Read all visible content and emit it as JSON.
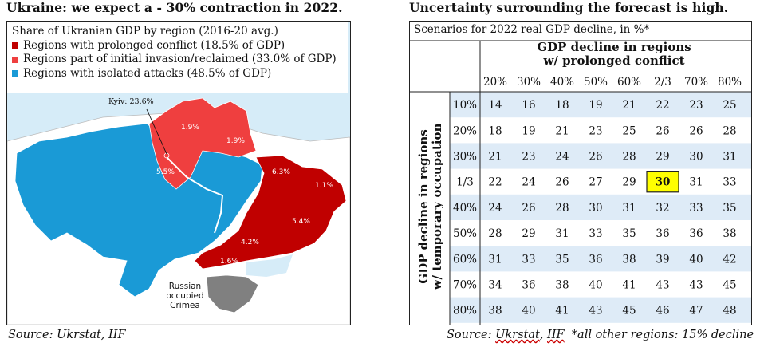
{
  "left_title": "Ukraine: we expect a - 30% contraction in 2022.",
  "right_title": "Uncertainty surrounding the forecast is high.",
  "left_source": "Source: Ukrstat, IIF",
  "right_source": {
    "prefix": "Source: ",
    "ukrstat": "Ukrstat",
    "sep": ", ",
    "iif": "IIF",
    "note": "  *all other regions: 15% decline"
  },
  "map": {
    "legend_title": "Share of Ukranian GDP by region (2016-20 avg.)",
    "legend": [
      {
        "label": "Regions with prolonged conflict (18.5% of GDP)",
        "color": "#c00000"
      },
      {
        "label": "Regions part of initial invasion/reclaimed (33.0% of GDP)",
        "color": "#ef3f3f"
      },
      {
        "label": "Regions with isolated attacks (48.5% of GDP)",
        "color": "#1a9ad6"
      }
    ],
    "kyiv_label": "Kyiv: 23.6%",
    "region_labels": [
      "1.9%",
      "1.9%",
      "5.5%",
      "6.3%",
      "1.1%",
      "5.4%",
      "4.2%",
      "1.6%"
    ],
    "crimea_label": [
      "Russian",
      "occupied",
      "Crimea"
    ],
    "colors": {
      "conflict": "#c00000",
      "invasion": "#ef3f3f",
      "isolated": "#1a9ad6",
      "crimea": "#808080",
      "sea": "#d6ecf8",
      "neighbor": "#ffffff"
    }
  },
  "chart_data": {
    "type": "table",
    "title": "Uncertainty surrounding the forecast is high.",
    "subtitle": "Scenarios for 2022 real GDP decline, in %*",
    "col_header": [
      "GDP decline in regions",
      "w/ prolonged conflict"
    ],
    "row_header": [
      "GDP decline in regions",
      "w/ temporary occupation"
    ],
    "columns": [
      "20%",
      "30%",
      "40%",
      "50%",
      "60%",
      "2/3",
      "70%",
      "80%"
    ],
    "rows": [
      "10%",
      "20%",
      "30%",
      "1/3",
      "40%",
      "50%",
      "60%",
      "70%",
      "80%"
    ],
    "values": [
      [
        14,
        16,
        18,
        19,
        21,
        22,
        23,
        25
      ],
      [
        18,
        19,
        21,
        23,
        25,
        26,
        26,
        28
      ],
      [
        21,
        23,
        24,
        26,
        28,
        29,
        30,
        31
      ],
      [
        22,
        24,
        26,
        27,
        29,
        30,
        31,
        33
      ],
      [
        24,
        26,
        28,
        30,
        31,
        32,
        33,
        35
      ],
      [
        28,
        29,
        31,
        33,
        35,
        36,
        36,
        38
      ],
      [
        31,
        33,
        35,
        36,
        38,
        39,
        40,
        42
      ],
      [
        34,
        36,
        38,
        40,
        41,
        43,
        43,
        45
      ],
      [
        38,
        40,
        41,
        43,
        45,
        46,
        47,
        48
      ]
    ],
    "highlight": {
      "row": 3,
      "col": 5,
      "color": "#ffff00"
    },
    "stripe_color": "#deebf7"
  }
}
